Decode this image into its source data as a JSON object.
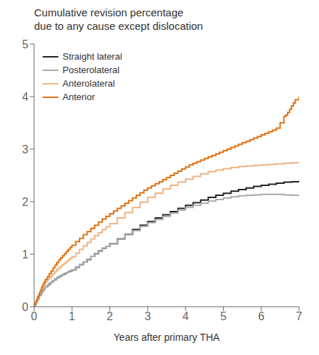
{
  "chart_data": {
    "type": "step",
    "title": "Cumulative revision percentage\ndue to any cause except dislocation",
    "xlabel": "Years after primary THA",
    "xlim": [
      0,
      7
    ],
    "ylim": [
      0,
      5
    ],
    "xticks": [
      0,
      1,
      2,
      3,
      4,
      5,
      6,
      7
    ],
    "yticks": [
      0,
      1,
      2,
      3,
      4,
      5
    ],
    "grid": false,
    "legend": "upper left",
    "series": [
      {
        "name": "Straight lateral",
        "color": "#222222",
        "x": [
          0,
          0.02,
          0.05,
          0.08,
          0.1,
          0.13,
          0.15,
          0.18,
          0.2,
          0.23,
          0.25,
          0.28,
          0.3,
          0.35,
          0.4,
          0.45,
          0.5,
          0.55,
          0.6,
          0.65,
          0.7,
          0.75,
          0.8,
          0.85,
          0.9,
          0.95,
          1.0,
          1.1,
          1.2,
          1.3,
          1.4,
          1.5,
          1.6,
          1.7,
          1.8,
          1.9,
          2.0,
          2.2,
          2.4,
          2.6,
          2.8,
          3.0,
          3.2,
          3.4,
          3.6,
          3.8,
          4.0,
          4.2,
          4.4,
          4.6,
          4.8,
          5.0,
          5.2,
          5.4,
          5.6,
          5.8,
          6.0,
          6.2,
          6.4,
          6.6,
          6.8,
          7.0
        ],
        "values": [
          0,
          0.04,
          0.08,
          0.12,
          0.15,
          0.19,
          0.22,
          0.25,
          0.28,
          0.31,
          0.33,
          0.36,
          0.38,
          0.41,
          0.44,
          0.47,
          0.5,
          0.52,
          0.55,
          0.57,
          0.59,
          0.61,
          0.63,
          0.65,
          0.67,
          0.68,
          0.7,
          0.75,
          0.8,
          0.85,
          0.9,
          0.96,
          1.01,
          1.06,
          1.11,
          1.15,
          1.2,
          1.29,
          1.38,
          1.47,
          1.55,
          1.62,
          1.69,
          1.75,
          1.81,
          1.87,
          1.93,
          1.98,
          2.03,
          2.08,
          2.12,
          2.16,
          2.2,
          2.23,
          2.26,
          2.29,
          2.31,
          2.33,
          2.35,
          2.37,
          2.38,
          2.4
        ]
      },
      {
        "name": "Posterolateral",
        "color": "#aaaaaa",
        "x": [
          0,
          0.02,
          0.05,
          0.08,
          0.1,
          0.13,
          0.15,
          0.18,
          0.2,
          0.23,
          0.25,
          0.28,
          0.3,
          0.35,
          0.4,
          0.45,
          0.5,
          0.55,
          0.6,
          0.65,
          0.7,
          0.75,
          0.8,
          0.85,
          0.9,
          0.95,
          1.0,
          1.1,
          1.2,
          1.3,
          1.4,
          1.5,
          1.6,
          1.7,
          1.8,
          1.9,
          2.0,
          2.2,
          2.4,
          2.6,
          2.8,
          3.0,
          3.2,
          3.4,
          3.6,
          3.8,
          4.0,
          4.2,
          4.4,
          4.6,
          4.8,
          5.0,
          5.2,
          5.4,
          5.6,
          5.8,
          6.0,
          6.2,
          6.4,
          6.6,
          6.8,
          7.0
        ],
        "values": [
          0,
          0.04,
          0.08,
          0.12,
          0.15,
          0.19,
          0.22,
          0.25,
          0.28,
          0.31,
          0.33,
          0.36,
          0.38,
          0.41,
          0.44,
          0.47,
          0.5,
          0.52,
          0.55,
          0.57,
          0.59,
          0.61,
          0.63,
          0.65,
          0.67,
          0.68,
          0.7,
          0.75,
          0.8,
          0.85,
          0.9,
          0.96,
          1.01,
          1.06,
          1.11,
          1.15,
          1.2,
          1.29,
          1.37,
          1.45,
          1.53,
          1.6,
          1.66,
          1.72,
          1.78,
          1.84,
          1.89,
          1.93,
          1.97,
          2.01,
          2.04,
          2.07,
          2.09,
          2.11,
          2.12,
          2.13,
          2.14,
          2.14,
          2.14,
          2.13,
          2.12,
          2.1
        ]
      },
      {
        "name": "Anterolateral",
        "color": "#f0b482",
        "x": [
          0,
          0.02,
          0.05,
          0.08,
          0.1,
          0.13,
          0.15,
          0.18,
          0.2,
          0.23,
          0.25,
          0.28,
          0.3,
          0.35,
          0.4,
          0.45,
          0.5,
          0.55,
          0.6,
          0.65,
          0.7,
          0.75,
          0.8,
          0.85,
          0.9,
          0.95,
          1.0,
          1.1,
          1.2,
          1.3,
          1.4,
          1.5,
          1.6,
          1.7,
          1.8,
          1.9,
          2.0,
          2.2,
          2.4,
          2.6,
          2.8,
          3.0,
          3.2,
          3.4,
          3.6,
          3.8,
          4.0,
          4.2,
          4.4,
          4.6,
          4.8,
          5.0,
          5.2,
          5.4,
          5.6,
          5.8,
          6.0,
          6.2,
          6.4,
          6.6,
          6.8,
          7.0
        ],
        "values": [
          0,
          0.05,
          0.1,
          0.15,
          0.19,
          0.23,
          0.27,
          0.31,
          0.35,
          0.38,
          0.41,
          0.44,
          0.47,
          0.51,
          0.55,
          0.59,
          0.63,
          0.67,
          0.71,
          0.74,
          0.77,
          0.8,
          0.83,
          0.86,
          0.89,
          0.92,
          0.95,
          1.02,
          1.09,
          1.16,
          1.22,
          1.29,
          1.35,
          1.41,
          1.47,
          1.52,
          1.58,
          1.69,
          1.79,
          1.89,
          1.99,
          2.08,
          2.16,
          2.24,
          2.31,
          2.37,
          2.43,
          2.48,
          2.53,
          2.57,
          2.6,
          2.63,
          2.65,
          2.67,
          2.68,
          2.69,
          2.7,
          2.71,
          2.72,
          2.73,
          2.74,
          2.75
        ]
      },
      {
        "name": "Anterior",
        "color": "#e07010",
        "x": [
          0,
          0.02,
          0.05,
          0.08,
          0.1,
          0.13,
          0.15,
          0.18,
          0.2,
          0.23,
          0.25,
          0.28,
          0.3,
          0.35,
          0.4,
          0.45,
          0.5,
          0.55,
          0.6,
          0.65,
          0.7,
          0.75,
          0.8,
          0.85,
          0.9,
          0.95,
          1.0,
          1.1,
          1.2,
          1.3,
          1.4,
          1.5,
          1.6,
          1.7,
          1.8,
          1.9,
          2.0,
          2.1,
          2.2,
          2.3,
          2.4,
          2.5,
          2.6,
          2.7,
          2.8,
          2.9,
          3.0,
          3.1,
          3.2,
          3.3,
          3.4,
          3.5,
          3.6,
          3.7,
          3.8,
          3.9,
          4.0,
          4.1,
          4.2,
          4.3,
          4.4,
          4.5,
          4.6,
          4.7,
          4.8,
          4.9,
          5.0,
          5.1,
          5.2,
          5.3,
          5.4,
          5.5,
          5.6,
          5.7,
          5.8,
          5.9,
          6.0,
          6.1,
          6.2,
          6.3,
          6.4,
          6.5,
          6.6,
          6.65,
          6.7,
          6.75,
          6.8,
          6.85,
          6.9,
          7.0
        ],
        "values": [
          0,
          0.06,
          0.11,
          0.16,
          0.2,
          0.24,
          0.28,
          0.32,
          0.37,
          0.41,
          0.45,
          0.48,
          0.52,
          0.57,
          0.63,
          0.68,
          0.74,
          0.79,
          0.84,
          0.89,
          0.93,
          0.97,
          1.01,
          1.05,
          1.09,
          1.13,
          1.17,
          1.24,
          1.3,
          1.37,
          1.43,
          1.49,
          1.55,
          1.61,
          1.67,
          1.72,
          1.77,
          1.82,
          1.87,
          1.92,
          1.97,
          2.02,
          2.07,
          2.12,
          2.17,
          2.22,
          2.26,
          2.3,
          2.34,
          2.38,
          2.42,
          2.46,
          2.5,
          2.54,
          2.58,
          2.62,
          2.66,
          2.7,
          2.73,
          2.76,
          2.79,
          2.82,
          2.85,
          2.88,
          2.91,
          2.94,
          2.97,
          3.0,
          3.03,
          3.06,
          3.09,
          3.12,
          3.15,
          3.18,
          3.21,
          3.24,
          3.27,
          3.3,
          3.33,
          3.36,
          3.4,
          3.5,
          3.62,
          3.65,
          3.7,
          3.76,
          3.82,
          3.88,
          3.94,
          4.0
        ]
      }
    ]
  }
}
